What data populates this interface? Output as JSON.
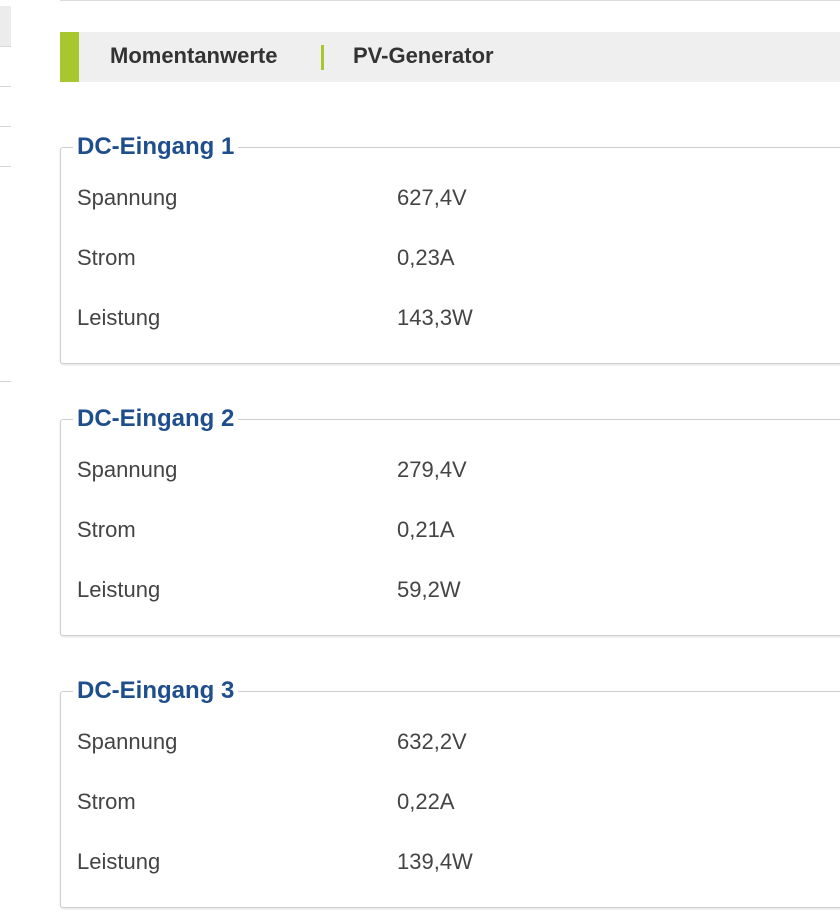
{
  "header": {
    "title": "Momentanwerte",
    "subtitle": "PV-Generator"
  },
  "colors": {
    "accent": "#a8c62e",
    "legend": "#1f4e8c",
    "text": "#444444"
  },
  "groups": [
    {
      "legend": "DC-Eingang 1",
      "rows": [
        {
          "label": "Spannung",
          "value": "627,4V"
        },
        {
          "label": "Strom",
          "value": "0,23A"
        },
        {
          "label": "Leistung",
          "value": "143,3W"
        }
      ]
    },
    {
      "legend": "DC-Eingang 2",
      "rows": [
        {
          "label": "Spannung",
          "value": "279,4V"
        },
        {
          "label": "Strom",
          "value": "0,21A"
        },
        {
          "label": "Leistung",
          "value": "59,2W"
        }
      ]
    },
    {
      "legend": "DC-Eingang 3",
      "rows": [
        {
          "label": "Spannung",
          "value": "632,2V"
        },
        {
          "label": "Strom",
          "value": "0,22A"
        },
        {
          "label": "Leistung",
          "value": "139,4W"
        }
      ]
    }
  ]
}
